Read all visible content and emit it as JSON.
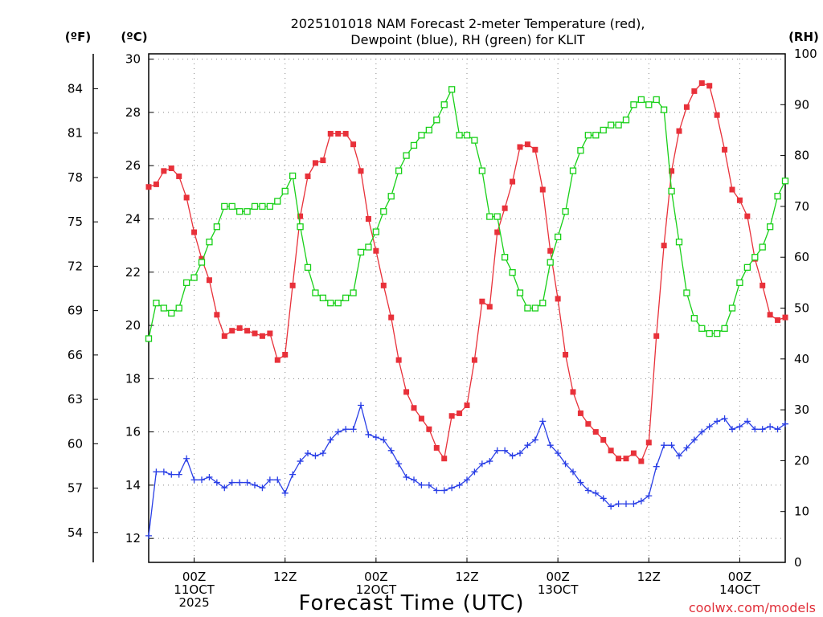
{
  "chart_data": {
    "type": "line",
    "title": [
      "2025101018 NAM Forecast 2-meter Temperature (red),",
      "Dewpoint (blue), RH (green) for KLIT"
    ],
    "xlabel": "Forecast Time (UTC)",
    "credit": "coolwx.com/models",
    "units": {
      "fahrenheit": "(ºF)",
      "celsius": "(ºC)",
      "rh": "(RH)"
    },
    "x_unit": "forecast hours from 2025-10-10 18Z",
    "xlim": [
      0,
      84
    ],
    "x_ticks": [
      {
        "hour": 6,
        "lines": [
          "00Z",
          "11OCT",
          "2025"
        ]
      },
      {
        "hour": 18,
        "lines": [
          "12Z"
        ]
      },
      {
        "hour": 30,
        "lines": [
          "00Z",
          "12OCT"
        ]
      },
      {
        "hour": 42,
        "lines": [
          "12Z"
        ]
      },
      {
        "hour": 54,
        "lines": [
          "00Z",
          "13OCT"
        ]
      },
      {
        "hour": 66,
        "lines": [
          "12Z"
        ]
      },
      {
        "hour": 78,
        "lines": [
          "00Z",
          "14OCT"
        ]
      }
    ],
    "y_celsius": {
      "lim": [
        11.1,
        30.2
      ],
      "ticks": [
        12,
        14,
        16,
        18,
        20,
        22,
        24,
        26,
        28,
        30
      ]
    },
    "y_fahrenheit": {
      "ticks": [
        54,
        57,
        60,
        63,
        66,
        69,
        72,
        75,
        78,
        81,
        84
      ]
    },
    "y_rh": {
      "lim": [
        0,
        100
      ],
      "ticks": [
        0,
        10,
        20,
        30,
        40,
        50,
        60,
        70,
        80,
        90,
        100
      ]
    },
    "series": [
      {
        "name": "2-meter Temperature (°C)",
        "axis": "celsius",
        "color": "#e8313a",
        "marker": "filled-square",
        "x": [
          0,
          1,
          2,
          3,
          4,
          5,
          6,
          7,
          8,
          9,
          10,
          11,
          12,
          13,
          14,
          15,
          16,
          17,
          18,
          19,
          20,
          21,
          22,
          23,
          24,
          25,
          26,
          27,
          28,
          29,
          30,
          31,
          32,
          33,
          34,
          35,
          36,
          37,
          38,
          39,
          40,
          41,
          42,
          43,
          44,
          45,
          46,
          47,
          48,
          49,
          50,
          51,
          52,
          53,
          54,
          55,
          56,
          57,
          58,
          59,
          60,
          61,
          62,
          63,
          64,
          65,
          66,
          67,
          68,
          69,
          70,
          71,
          72,
          73,
          74,
          75,
          76,
          77,
          78,
          79,
          80,
          81,
          82,
          83,
          84
        ],
        "values": [
          25.2,
          25.3,
          25.8,
          25.9,
          25.6,
          24.8,
          23.5,
          22.5,
          21.7,
          20.4,
          19.6,
          19.8,
          19.9,
          19.8,
          19.7,
          19.6,
          19.7,
          18.7,
          18.9,
          21.5,
          24.1,
          25.6,
          26.1,
          26.2,
          27.2,
          27.2,
          27.2,
          26.8,
          25.8,
          24.0,
          22.8,
          21.5,
          20.3,
          18.7,
          17.5,
          16.9,
          16.5,
          16.1,
          15.4,
          15.0,
          16.6,
          16.7,
          17.0,
          18.7,
          20.9,
          20.7,
          23.5,
          24.4,
          25.4,
          26.7,
          26.8,
          26.6,
          25.1,
          22.8,
          21.0,
          18.9,
          17.5,
          16.7,
          16.3,
          16.0,
          15.7,
          15.3,
          15.0,
          15.0,
          15.2,
          14.9,
          15.6,
          19.6,
          23.0,
          25.8,
          27.3,
          28.2,
          28.8,
          29.1,
          29.0,
          27.9,
          26.6,
          25.1,
          24.7,
          24.1,
          22.5,
          21.5,
          20.4,
          20.2,
          20.3
        ]
      },
      {
        "name": "Dewpoint (°C)",
        "axis": "celsius",
        "color": "#2a3fe6",
        "marker": "plus",
        "x": [
          0,
          1,
          2,
          3,
          4,
          5,
          6,
          7,
          8,
          9,
          10,
          11,
          12,
          13,
          14,
          15,
          16,
          17,
          18,
          19,
          20,
          21,
          22,
          23,
          24,
          25,
          26,
          27,
          28,
          29,
          30,
          31,
          32,
          33,
          34,
          35,
          36,
          37,
          38,
          39,
          40,
          41,
          42,
          43,
          44,
          45,
          46,
          47,
          48,
          49,
          50,
          51,
          52,
          53,
          54,
          55,
          56,
          57,
          58,
          59,
          60,
          61,
          62,
          63,
          64,
          65,
          66,
          67,
          68,
          69,
          70,
          71,
          72,
          73,
          74,
          75,
          76,
          77,
          78,
          79,
          80,
          81,
          82,
          83,
          84
        ],
        "values": [
          12.1,
          14.5,
          14.5,
          14.4,
          14.4,
          15.0,
          14.2,
          14.2,
          14.3,
          14.1,
          13.9,
          14.1,
          14.1,
          14.1,
          14.0,
          13.9,
          14.2,
          14.2,
          13.7,
          14.4,
          14.9,
          15.2,
          15.1,
          15.2,
          15.7,
          16.0,
          16.1,
          16.1,
          17.0,
          15.9,
          15.8,
          15.7,
          15.3,
          14.8,
          14.3,
          14.2,
          14.0,
          14.0,
          13.8,
          13.8,
          13.9,
          14.0,
          14.2,
          14.5,
          14.8,
          14.9,
          15.3,
          15.3,
          15.1,
          15.2,
          15.5,
          15.7,
          16.4,
          15.5,
          15.2,
          14.8,
          14.5,
          14.1,
          13.8,
          13.7,
          13.5,
          13.2,
          13.3,
          13.3,
          13.3,
          13.4,
          13.6,
          14.7,
          15.5,
          15.5,
          15.1,
          15.4,
          15.7,
          16.0,
          16.2,
          16.4,
          16.5,
          16.1,
          16.2,
          16.4,
          16.1,
          16.1,
          16.2,
          16.1,
          16.3
        ]
      },
      {
        "name": "Relative Humidity (%)",
        "axis": "rh",
        "color": "#18d018",
        "marker": "open-square",
        "x": [
          0,
          1,
          2,
          3,
          4,
          5,
          6,
          7,
          8,
          9,
          10,
          11,
          12,
          13,
          14,
          15,
          16,
          17,
          18,
          19,
          20,
          21,
          22,
          23,
          24,
          25,
          26,
          27,
          28,
          29,
          30,
          31,
          32,
          33,
          34,
          35,
          36,
          37,
          38,
          39,
          40,
          41,
          42,
          43,
          44,
          45,
          46,
          47,
          48,
          49,
          50,
          51,
          52,
          53,
          54,
          55,
          56,
          57,
          58,
          59,
          60,
          61,
          62,
          63,
          64,
          65,
          66,
          67,
          68,
          69,
          70,
          71,
          72,
          73,
          74,
          75,
          76,
          77,
          78,
          79,
          80,
          81,
          82,
          83,
          84
        ],
        "values": [
          44,
          51,
          50,
          49,
          50,
          55,
          56,
          59,
          63,
          66,
          70,
          70,
          69,
          69,
          70,
          70,
          70,
          71,
          73,
          76,
          66,
          58,
          53,
          52,
          51,
          51,
          52,
          53,
          61,
          62,
          65,
          69,
          72,
          77,
          80,
          82,
          84,
          85,
          87,
          90,
          93,
          84,
          84,
          83,
          77,
          68,
          68,
          60,
          57,
          53,
          50,
          50,
          51,
          59,
          64,
          69,
          77,
          81,
          84,
          84,
          85,
          86,
          86,
          87,
          90,
          91,
          90,
          91,
          89,
          73,
          63,
          53,
          48,
          46,
          45,
          45,
          46,
          50,
          55,
          58,
          60,
          62,
          66,
          72,
          75
        ]
      }
    ]
  }
}
